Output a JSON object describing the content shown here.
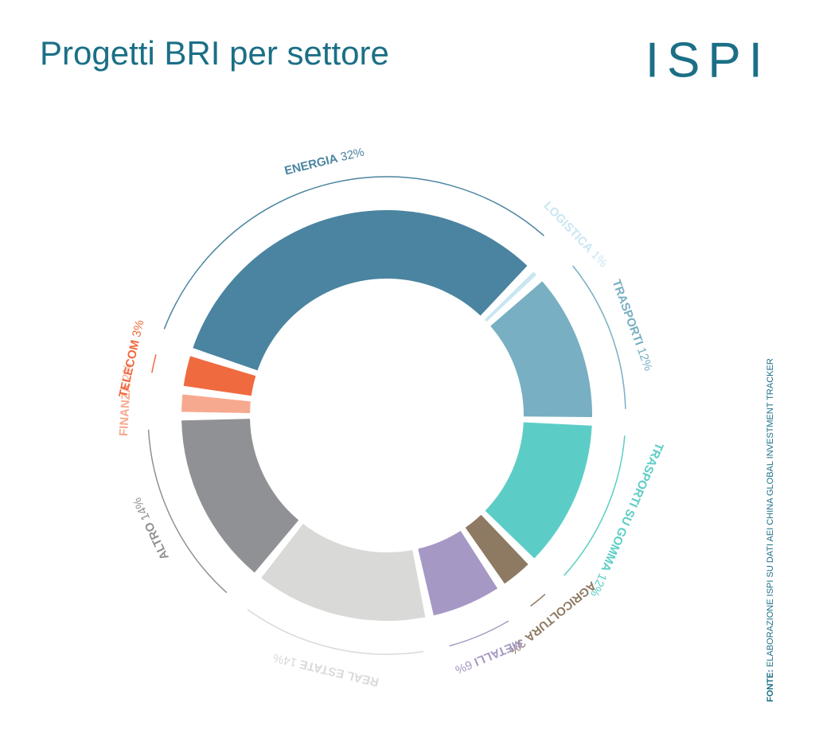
{
  "chart_data": {
    "type": "donut",
    "title": "Progetti BRI per settore",
    "logo": "ISPI",
    "source_label": "FONTE:",
    "source": "ELABORAZIONE ISPI SU DATI AEI CHINA GLOBAL INVESTMENT TRACKER",
    "categories": [
      "ENERGIA",
      "LOGISTICA",
      "TRASPORTI",
      "TRASPORTI SU GOMMA",
      "AGRICOLTURA",
      "METALLI",
      "REAL ESTATE",
      "ALTRO",
      "FINANZA",
      "TELECOM"
    ],
    "values": [
      32,
      1,
      12,
      12,
      3,
      6,
      14,
      14,
      2,
      3
    ],
    "value_labels": [
      "32%",
      "1%",
      "12%",
      "12%",
      "3%",
      "6%",
      "14%",
      "14%",
      "2%",
      "3%"
    ],
    "colors": [
      "#4a84a0",
      "#c9e6f1",
      "#78afc2",
      "#5ccdc6",
      "#8e7a62",
      "#a698c4",
      "#d9d9d7",
      "#8f9194",
      "#f7a98f",
      "#f06a3f"
    ]
  }
}
